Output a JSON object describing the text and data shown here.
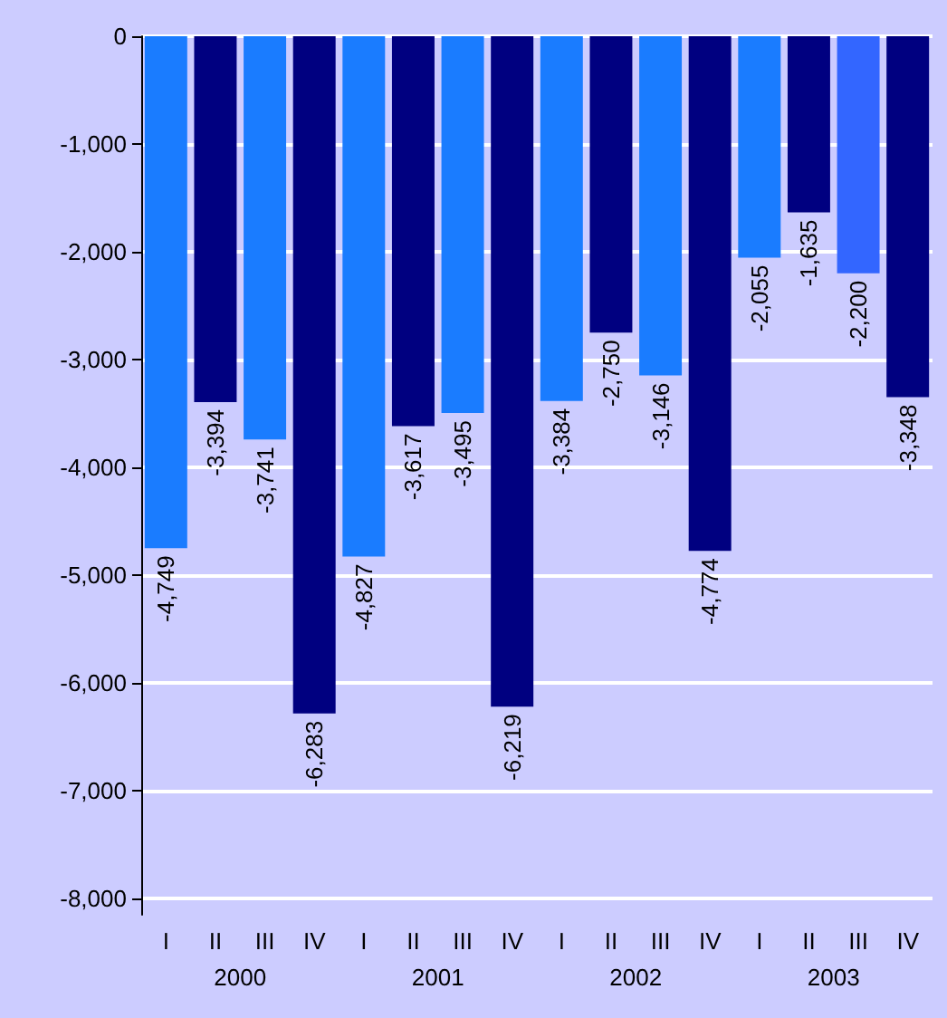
{
  "chart_data": {
    "type": "bar",
    "categories": [
      "I",
      "II",
      "III",
      "IV",
      "I",
      "II",
      "III",
      "IV",
      "I",
      "II",
      "III",
      "IV",
      "I",
      "II",
      "III",
      "IV"
    ],
    "values": [
      -4749,
      -3394,
      -3741,
      -6283,
      -4827,
      -3617,
      -3495,
      -6219,
      -3384,
      -2750,
      -3146,
      -4774,
      -2055,
      -1635,
      -2200,
      -3348
    ],
    "value_labels": [
      "-4,749",
      "-3,394",
      "-3,741",
      "-6,283",
      "-4,827",
      "-3,617",
      "-3,495",
      "-6,219",
      "-3,384",
      "-2,750",
      "-3,146",
      "-4,774",
      "-2,055",
      "-1,635",
      "-2,200",
      "-3,348"
    ],
    "colors": [
      "#1a7cff",
      "#000080",
      "#1a7cff",
      "#000080",
      "#1a7cff",
      "#000080",
      "#1a7cff",
      "#000080",
      "#1a7cff",
      "#000080",
      "#1a7cff",
      "#000080",
      "#1a7cff",
      "#000080",
      "#3366ff",
      "#000080"
    ],
    "ylim": [
      -8150,
      0
    ],
    "yticks": [
      0,
      {
        "value": -1000,
        "label": "-1,000"
      },
      {
        "value": -2000,
        "label": "-2,000"
      },
      {
        "value": -3000,
        "label": "-3,000"
      },
      {
        "value": -4000,
        "label": "-4,000"
      },
      {
        "value": -5000,
        "label": "-5,000"
      },
      {
        "value": -6000,
        "label": "-6,000"
      },
      {
        "value": -7000,
        "label": "-7,000"
      },
      {
        "value": -8000,
        "label": "-8,000"
      }
    ],
    "annotations": [
      "2000",
      "2001",
      "2002",
      "2003"
    ],
    "grid": "y"
  }
}
